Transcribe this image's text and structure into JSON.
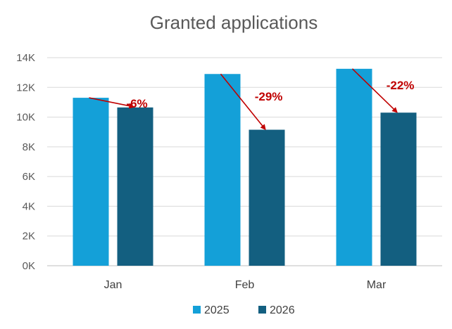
{
  "colors": {
    "series_2025": "#14a0d8",
    "series_2026": "#135f80",
    "annotation": "#c00000"
  },
  "chart_data": {
    "type": "bar",
    "title": "Granted applications",
    "xlabel": "",
    "ylabel": "",
    "ylim": [
      0,
      14000
    ],
    "yticks": [
      0,
      2000,
      4000,
      6000,
      8000,
      10000,
      12000,
      14000
    ],
    "yticklabels": [
      "0K",
      "2K",
      "4K",
      "6K",
      "8K",
      "10K",
      "12K",
      "14K"
    ],
    "grid": true,
    "legend_position": "bottom",
    "categories": [
      "Jan",
      "Feb",
      "Mar"
    ],
    "series": [
      {
        "name": "2025",
        "values": [
          11300,
          12900,
          13250
        ]
      },
      {
        "name": "2026",
        "values": [
          10650,
          9150,
          10300
        ]
      }
    ],
    "annotations": [
      "-6%",
      "-29%",
      "-22%"
    ]
  }
}
